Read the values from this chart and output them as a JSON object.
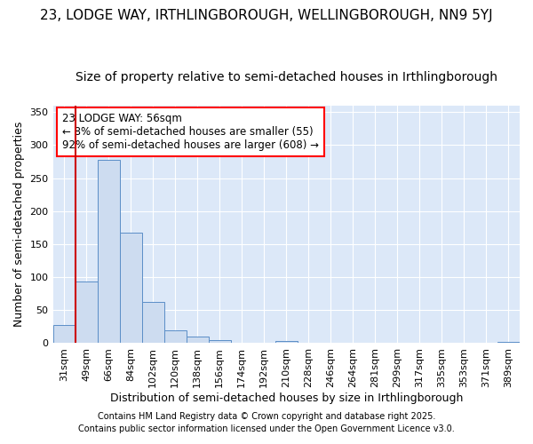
{
  "title": "23, LODGE WAY, IRTHLINGBOROUGH, WELLINGBOROUGH, NN9 5YJ",
  "subtitle": "Size of property relative to semi-detached houses in Irthlingborough",
  "xlabel": "Distribution of semi-detached houses by size in Irthlingborough",
  "ylabel": "Number of semi-detached properties",
  "categories": [
    "31sqm",
    "49sqm",
    "66sqm",
    "84sqm",
    "102sqm",
    "120sqm",
    "138sqm",
    "156sqm",
    "174sqm",
    "192sqm",
    "210sqm",
    "228sqm",
    "246sqm",
    "264sqm",
    "281sqm",
    "299sqm",
    "317sqm",
    "335sqm",
    "353sqm",
    "371sqm",
    "389sqm"
  ],
  "values": [
    28,
    93,
    278,
    167,
    62,
    20,
    10,
    5,
    0,
    0,
    3,
    0,
    0,
    0,
    0,
    0,
    0,
    0,
    0,
    0,
    2
  ],
  "bar_color": "#cddcf0",
  "bar_edge_color": "#5b8ec7",
  "vline_x": 1,
  "vline_color": "#cc0000",
  "annotation_title": "23 LODGE WAY: 56sqm",
  "annotation_line1": "← 8% of semi-detached houses are smaller (55)",
  "annotation_line2": "92% of semi-detached houses are larger (608) →",
  "footnote1": "Contains HM Land Registry data © Crown copyright and database right 2025.",
  "footnote2": "Contains public sector information licensed under the Open Government Licence v3.0.",
  "ylim": [
    0,
    360
  ],
  "yticks": [
    0,
    50,
    100,
    150,
    200,
    250,
    300,
    350
  ],
  "fig_bg_color": "#ffffff",
  "plot_bg_color": "#dce8f8",
  "grid_color": "#ffffff",
  "title_fontsize": 11,
  "subtitle_fontsize": 10,
  "xlabel_fontsize": 9,
  "ylabel_fontsize": 9,
  "tick_fontsize": 8,
  "annot_fontsize": 8.5,
  "footnote_fontsize": 7
}
